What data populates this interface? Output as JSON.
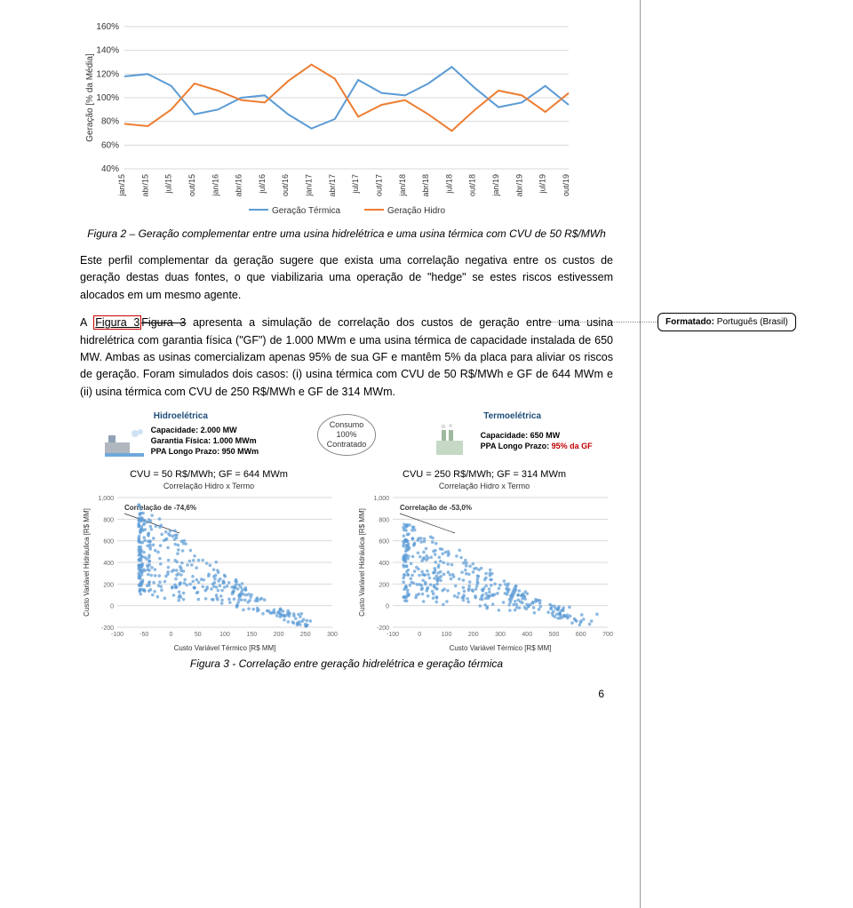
{
  "line_chart": {
    "type": "line",
    "y_label": "Geração [% da Média]",
    "y_label_fontsize": 10,
    "x_labels": [
      "jan/15",
      "abr/15",
      "jul/15",
      "out/15",
      "jan/16",
      "abr/16",
      "jul/16",
      "out/16",
      "jan/17",
      "abr/17",
      "jul/17",
      "out/17",
      "jan/18",
      "abr/18",
      "jul/18",
      "out/18",
      "jan/19",
      "abr/19",
      "jul/19",
      "out/19"
    ],
    "x_label_fontsize": 9,
    "ylim": [
      40,
      160
    ],
    "ytick_step": 20,
    "y_ticks_labels": [
      "40%",
      "60%",
      "80%",
      "100%",
      "120%",
      "140%",
      "160%"
    ],
    "tick_fontsize": 10,
    "grid_color": "#d9d9d9",
    "background_color": "#ffffff",
    "series": [
      {
        "name": "Geração Térmica",
        "color": "#5b9bd5",
        "width": 2,
        "values": [
          118,
          120,
          110,
          86,
          90,
          100,
          102,
          86,
          74,
          82,
          115,
          104,
          102,
          112,
          126,
          108,
          92,
          96,
          110,
          94
        ]
      },
      {
        "name": "Geração Hidro",
        "color": "#ed7d31",
        "width": 2,
        "values": [
          78,
          76,
          90,
          112,
          106,
          98,
          96,
          114,
          128,
          116,
          84,
          94,
          98,
          86,
          72,
          90,
          106,
          102,
          88,
          104
        ]
      }
    ],
    "legend": {
      "items": [
        "Geração Térmica",
        "Geração Hidro"
      ],
      "position": "bottom",
      "fontsize": 10
    }
  },
  "caption1": "Figura 2 – Geração complementar entre uma usina hidrelétrica e uma usina térmica com CVU de 50 R$/MWh",
  "para1": "Este perfil complementar da geração sugere que exista uma correlação negativa entre os custos de geração destas duas fontes, o que viabilizaria uma operação de \"hedge\" se estes riscos estivessem alocados em um mesmo agente.",
  "para2_a": "A ",
  "para2_link": "Figura 3",
  "para2_strike": "Figura 3",
  "para2_b": " apresenta a simulação de correlação dos custos de geração entre uma usina hidrelétrica com garantia física (\"GF\") de 1.000 MWm e uma usina térmica de capacidade instalada de 650 MW. Ambas as usinas comercializam apenas 95% de sua GF e mantêm 5% da placa para aliviar os riscos de geração. Foram simulados dois casos: (i) usina térmica com CVU de 50 R$/MWh e GF de 644 MWm e (ii) usina térmica com CVU de 250 R$/MWh e GF de 314 MWm.",
  "comment": {
    "label": "Formatado:",
    "value": "Português (Brasil)"
  },
  "infographic": {
    "hydro": {
      "title": "Hidroelétrica",
      "lines": [
        "Capacidade: 2.000 MW",
        "Garantia Física: 1.000 MWm",
        "PPA Longo Prazo: 950 MWm"
      ]
    },
    "consumer": {
      "line1": "Consumo",
      "line2": "100%",
      "line3": "Contratado"
    },
    "thermo": {
      "title": "Termoelétrica",
      "lines_plain": "Capacidade: 650 MW",
      "ppa_prefix": "PPA Longo Prazo: ",
      "ppa_value": "95% da GF",
      "ppa_value_color": "#c00000"
    }
  },
  "scatter_left": {
    "title_line": "CVU = 50 R$/MWh; GF = 644 MWm",
    "chart_title": "Correlação Hidro x Termo",
    "corr_label": "Correlação de -74,6%",
    "xlabel": "Custo Variável Térmico [R$ MM]",
    "ylabel": "Custo Variável Hidráulica [R$ MM]",
    "xlim": [
      -100,
      300
    ],
    "xtick_step": 50,
    "ylim": [
      -200,
      1000
    ],
    "ytick_step": 200,
    "label_fontsize": 8,
    "tick_fontsize": 7,
    "point_color": "#5b9bd5",
    "grid_color": "#d9d9d9",
    "background_color": "#ffffff"
  },
  "scatter_right": {
    "title_line": "CVU = 250 R$/MWh; GF = 314 MWm",
    "chart_title": "Correlação Hidro x Termo",
    "corr_label": "Correlação de -53,0%",
    "xlabel": "Custo Variável Térmico [R$ MM]",
    "ylabel": "Custo Variável Hidráulica [R$ MM]",
    "xlim": [
      -100,
      700
    ],
    "xtick_step": 100,
    "ylim": [
      -200,
      1000
    ],
    "ytick_step": 200,
    "label_fontsize": 8,
    "tick_fontsize": 7,
    "point_color": "#5b9bd5",
    "grid_color": "#d9d9d9",
    "background_color": "#ffffff"
  },
  "caption2": "Figura 3 - Correlação entre geração hidrelétrica e geração térmica",
  "page_number": "6"
}
